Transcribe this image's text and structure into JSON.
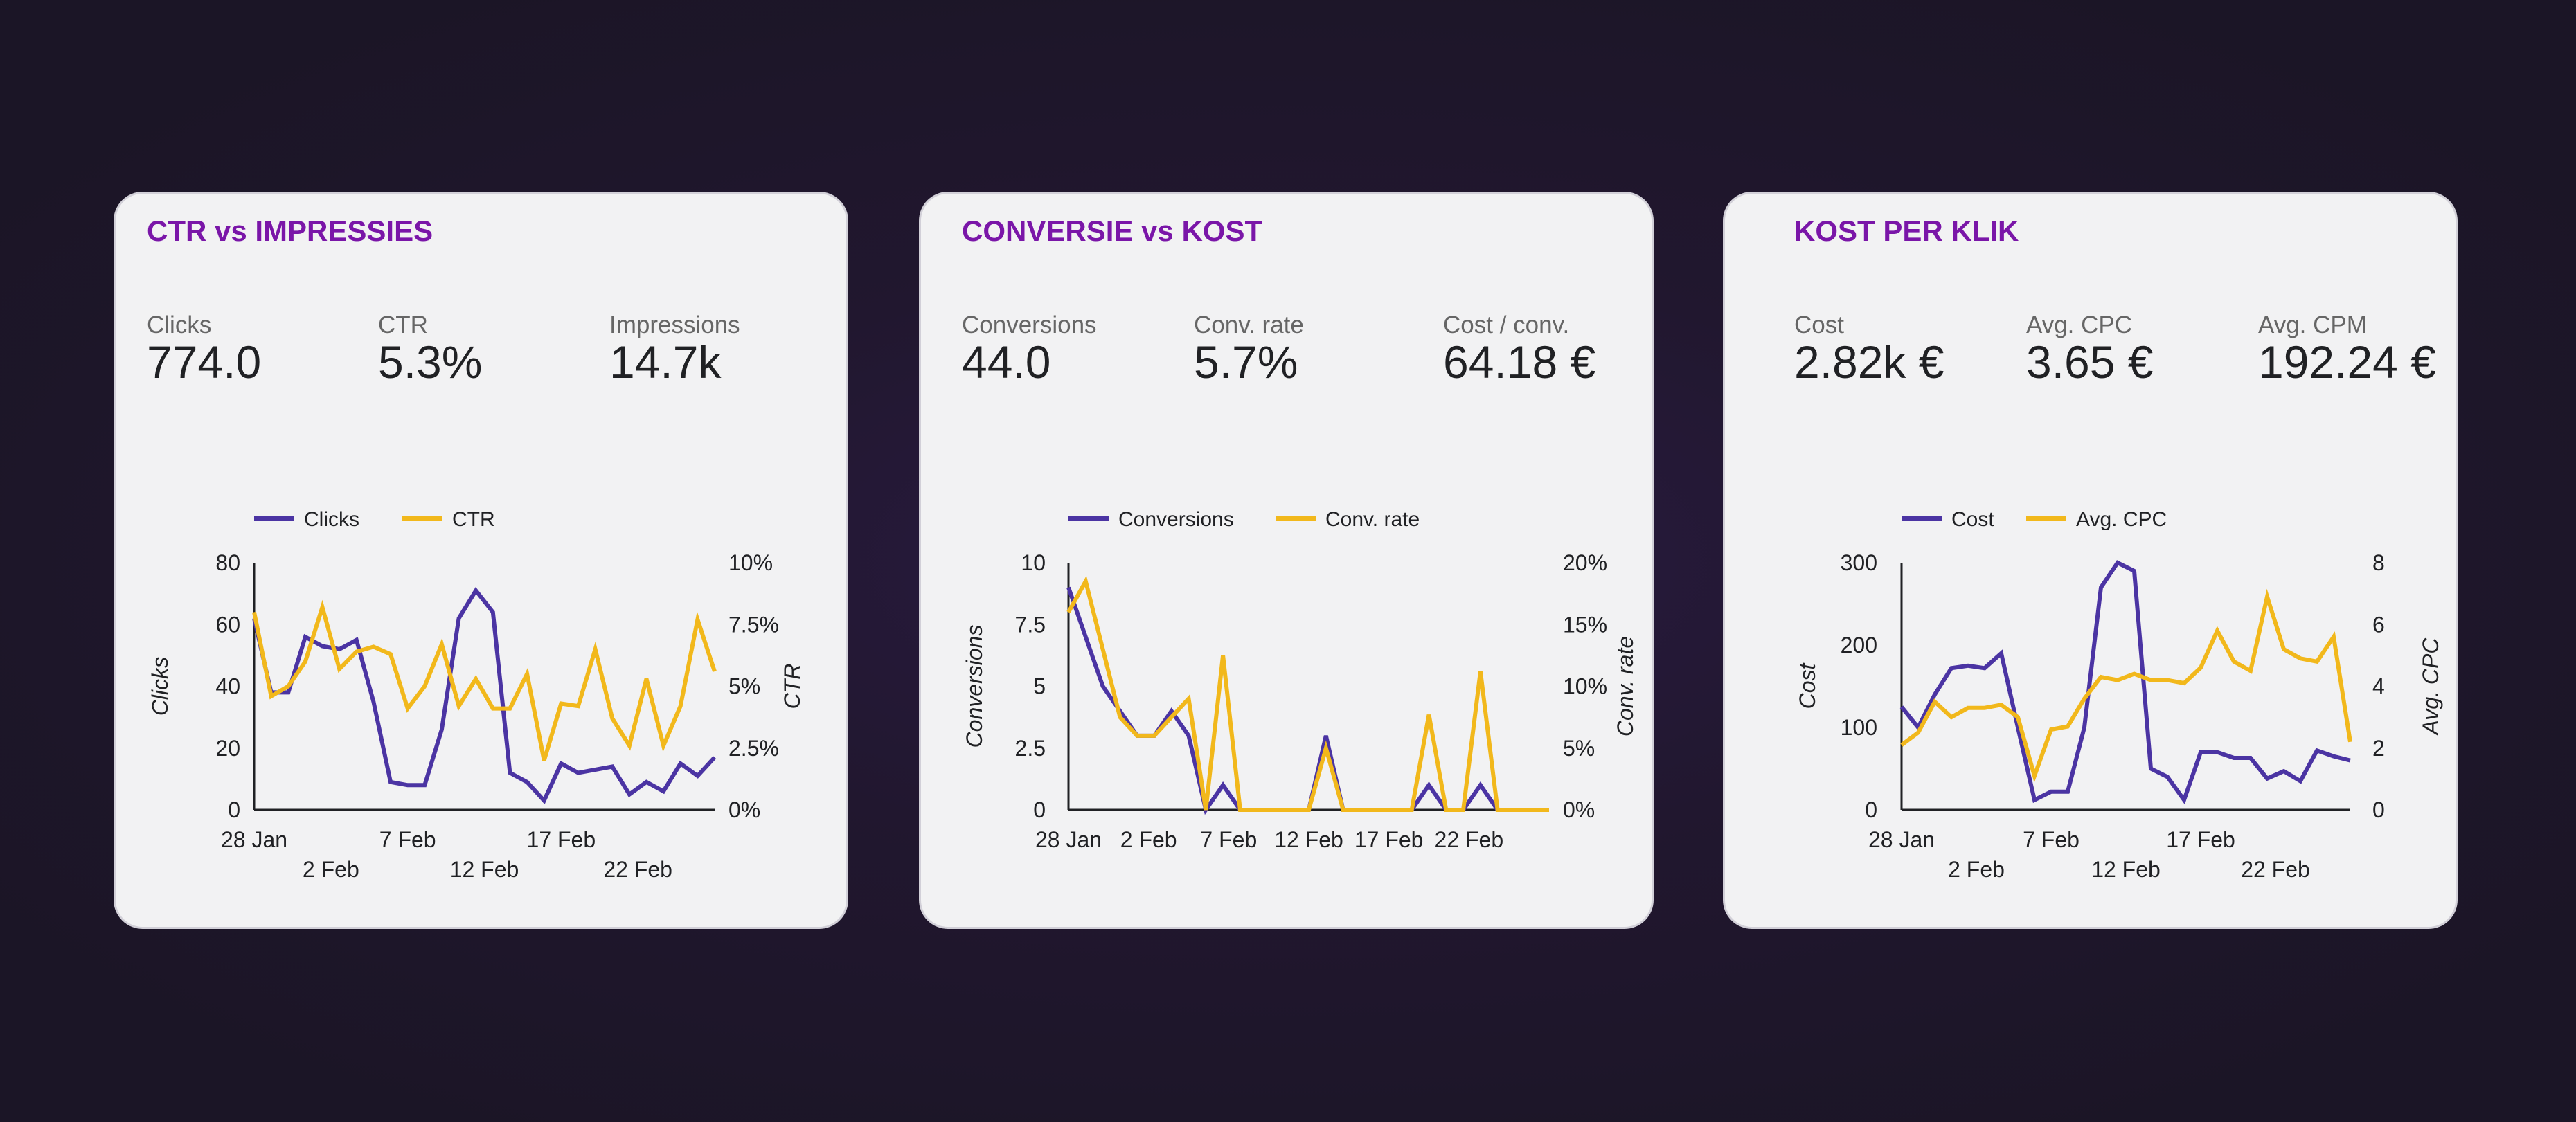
{
  "colors": {
    "primary_series": "#4b34a3",
    "secondary_series": "#f2b81b",
    "title": "#7a16a8"
  },
  "cards": [
    {
      "title": "CTR vs IMPRESSIES",
      "metrics": [
        {
          "label": "Clicks",
          "value": "774.0"
        },
        {
          "label": "CTR",
          "value": "5.3%"
        },
        {
          "label": "Impressions",
          "value": "14.7k"
        }
      ]
    },
    {
      "title": "CONVERSIE vs KOST",
      "metrics": [
        {
          "label": "Conversions",
          "value": "44.0"
        },
        {
          "label": "Conv. rate",
          "value": "5.7%"
        },
        {
          "label": "Cost / conv.",
          "value": "64.18 €"
        }
      ]
    },
    {
      "title": "KOST PER KLIK",
      "metrics": [
        {
          "label": "Cost",
          "value": "2.82k €"
        },
        {
          "label": "Avg. CPC",
          "value": "3.65 €"
        },
        {
          "label": "Avg. CPM",
          "value": "192.24 €"
        }
      ]
    }
  ],
  "chart_data": [
    {
      "type": "line",
      "x_ticks_row1": [
        "28 Jan",
        "7 Feb",
        "17 Feb"
      ],
      "x_ticks_row2": [
        "2 Feb",
        "12 Feb",
        "22 Feb"
      ],
      "y_left": {
        "label": "Clicks",
        "range": [
          0,
          80
        ],
        "ticks": [
          "0",
          "20",
          "40",
          "60",
          "80"
        ]
      },
      "y_right": {
        "label": "CTR",
        "range": [
          0,
          10
        ],
        "ticks": [
          "0%",
          "2.5%",
          "5%",
          "7.5%",
          "10%"
        ]
      },
      "series": [
        {
          "name": "Clicks",
          "axis": "left",
          "values": [
            62,
            38,
            38,
            56,
            53,
            52,
            55,
            35,
            9,
            8,
            8,
            26,
            62,
            71,
            64,
            12,
            9,
            3,
            15,
            12,
            13,
            14,
            5,
            9,
            6,
            15,
            11,
            17
          ]
        },
        {
          "name": "CTR",
          "axis": "right",
          "values": [
            8.0,
            4.6,
            5.0,
            6.0,
            8.2,
            5.7,
            6.4,
            6.6,
            6.3,
            4.1,
            5.0,
            6.7,
            4.2,
            5.3,
            4.1,
            4.1,
            5.5,
            2.0,
            4.3,
            4.2,
            6.5,
            3.7,
            2.6,
            5.3,
            2.6,
            4.2,
            7.7,
            5.6
          ]
        }
      ]
    },
    {
      "type": "line",
      "x_ticks_row1": [
        "28 Jan",
        "2 Feb",
        "7 Feb",
        "12 Feb",
        "17 Feb",
        "22 Feb"
      ],
      "x_ticks_row2": [],
      "y_left": {
        "label": "Conversions",
        "range": [
          0,
          10
        ],
        "ticks": [
          "0",
          "2.5",
          "5",
          "7.5",
          "10"
        ]
      },
      "y_right": {
        "label": "Conv. rate",
        "range": [
          0,
          20
        ],
        "ticks": [
          "0%",
          "5%",
          "10%",
          "15%",
          "20%"
        ]
      },
      "series": [
        {
          "name": "Conversions",
          "axis": "left",
          "values": [
            9,
            7,
            5,
            4,
            3,
            3,
            4,
            3,
            0,
            1,
            0,
            0,
            0,
            0,
            0,
            3,
            0,
            0,
            0,
            0,
            0,
            1,
            0,
            0,
            1,
            0,
            0,
            0,
            0
          ]
        },
        {
          "name": "Conv. rate",
          "axis": "right",
          "values": [
            16,
            18.5,
            13,
            7.5,
            6,
            6,
            7.5,
            9,
            0,
            12.5,
            0,
            0,
            0,
            0,
            0,
            5,
            0,
            0,
            0,
            0,
            0,
            7.7,
            0,
            0,
            11.2,
            0,
            0,
            0,
            0
          ]
        }
      ]
    },
    {
      "type": "line",
      "x_ticks_row1": [
        "28 Jan",
        "7 Feb",
        "17 Feb"
      ],
      "x_ticks_row2": [
        "2 Feb",
        "12 Feb",
        "22 Feb"
      ],
      "y_left": {
        "label": "Cost",
        "range": [
          0,
          300
        ],
        "ticks": [
          "0",
          "100",
          "200",
          "300"
        ]
      },
      "y_right": {
        "label": "Avg. CPC",
        "range": [
          0,
          8
        ],
        "ticks": [
          "0",
          "2",
          "4",
          "6",
          "8"
        ]
      },
      "series": [
        {
          "name": "Cost",
          "axis": "left",
          "values": [
            125,
            100,
            140,
            172,
            175,
            172,
            190,
            100,
            12,
            22,
            22,
            100,
            270,
            300,
            290,
            50,
            40,
            12,
            70,
            70,
            63,
            63,
            38,
            47,
            35,
            72,
            65,
            60
          ]
        },
        {
          "name": "Avg. CPC",
          "axis": "right",
          "values": [
            2.1,
            2.5,
            3.5,
            3.0,
            3.3,
            3.3,
            3.4,
            3.0,
            1.1,
            2.6,
            2.7,
            3.6,
            4.3,
            4.2,
            4.4,
            4.2,
            4.2,
            4.1,
            4.6,
            5.8,
            4.8,
            4.5,
            6.9,
            5.2,
            4.9,
            4.8,
            5.6,
            2.2
          ]
        }
      ]
    }
  ]
}
